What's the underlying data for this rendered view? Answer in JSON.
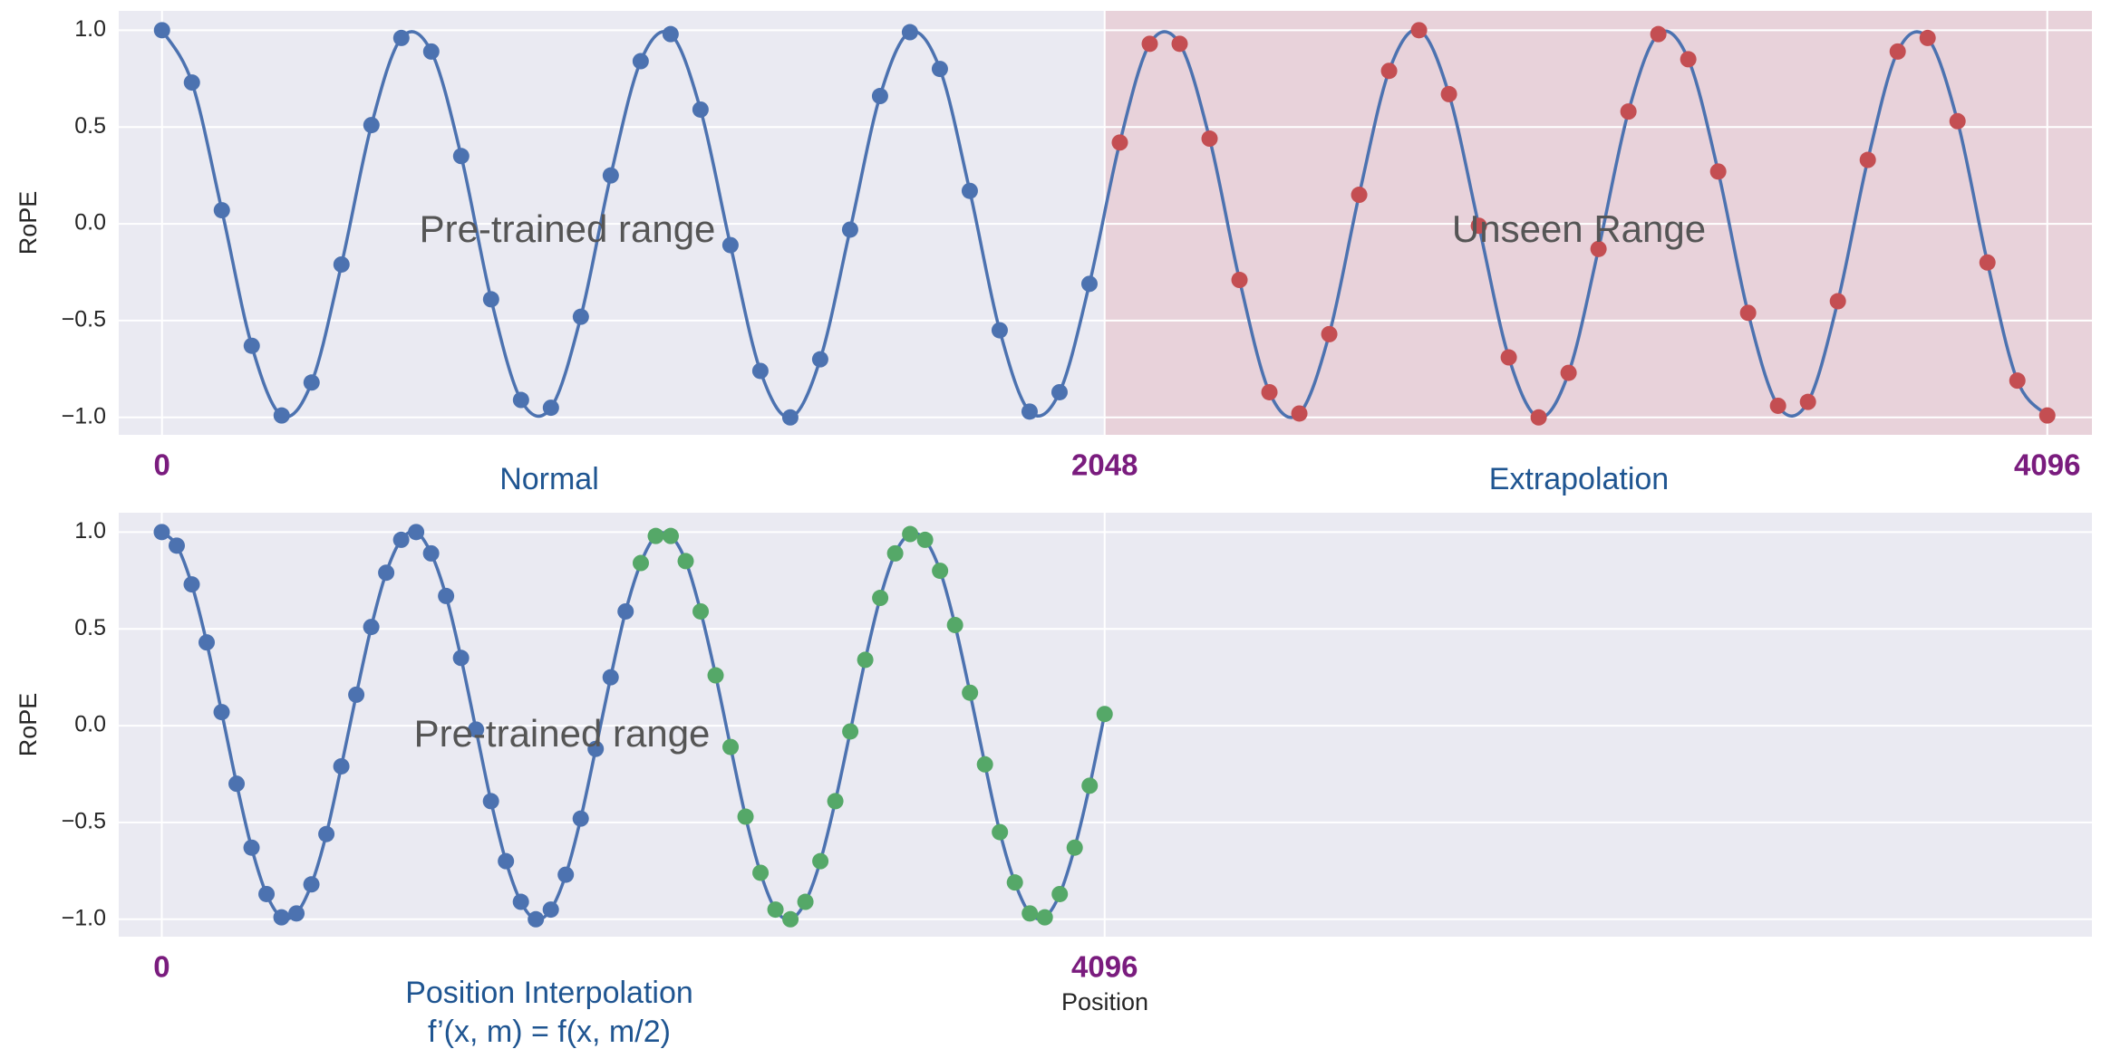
{
  "chart_data": [
    {
      "type": "line",
      "ylabel": "RoPE",
      "xlim": [
        -94,
        4193
      ],
      "ylim": [
        -1.09,
        1.1
      ],
      "xticks": [
        0,
        2048,
        4096
      ],
      "yticks": [
        {
          "value": -1,
          "label": "−1.0"
        },
        {
          "value": -0.5,
          "label": "−0.5"
        },
        {
          "value": 0,
          "label": "0.0"
        },
        {
          "value": 0.5,
          "label": "0.5"
        },
        {
          "value": 1,
          "label": "1.0"
        }
      ],
      "grid": true,
      "line_color": "#4c72b0",
      "shaded_span": [
        2048,
        4193
      ],
      "shade_color": "#e8d2da",
      "annotations": [
        "Pre-trained range",
        "Unseen Range"
      ],
      "regions": [
        "Normal",
        "Extrapolation"
      ],
      "series": [
        {
          "color": "#4c72b0",
          "x": [
            0,
            65,
            130,
            195,
            260,
            325,
            390,
            455,
            520,
            585,
            650,
            715,
            780,
            845,
            910,
            975,
            1040,
            1105,
            1170,
            1235,
            1300,
            1365,
            1430,
            1495,
            1560,
            1625,
            1690,
            1755,
            1820,
            1885,
            1950,
            2015
          ],
          "values": [
            1.0,
            0.73,
            0.07,
            -0.63,
            -0.99,
            -0.82,
            -0.21,
            0.51,
            0.96,
            0.89,
            0.35,
            -0.39,
            -0.91,
            -0.95,
            -0.48,
            0.25,
            0.84,
            0.98,
            0.59,
            -0.11,
            -0.76,
            -1.0,
            -0.7,
            -0.03,
            0.66,
            0.99,
            0.8,
            0.17,
            -0.55,
            -0.97,
            -0.87,
            -0.31
          ]
        },
        {
          "color": "#c44e52",
          "x": [
            2081,
            2146,
            2211,
            2276,
            2341,
            2406,
            2471,
            2536,
            2601,
            2666,
            2731,
            2796,
            2861,
            2926,
            2991,
            3056,
            3121,
            3186,
            3251,
            3316,
            3381,
            3446,
            3511,
            3576,
            3641,
            3706,
            3771,
            3836,
            3901,
            3966,
            4031,
            4096
          ],
          "values": [
            0.42,
            0.93,
            0.93,
            0.44,
            -0.29,
            -0.87,
            -0.98,
            -0.57,
            0.15,
            0.79,
            1.0,
            0.67,
            -0.01,
            -0.69,
            -1.0,
            -0.77,
            -0.13,
            0.58,
            0.98,
            0.85,
            0.27,
            -0.46,
            -0.94,
            -0.92,
            -0.4,
            0.33,
            0.89,
            0.96,
            0.53,
            -0.2,
            -0.81,
            -0.99
          ]
        }
      ]
    },
    {
      "type": "line",
      "ylabel": "RoPE",
      "xlabel": "Position",
      "xlim": [
        -187,
        8385
      ],
      "ylim": [
        -1.09,
        1.1
      ],
      "xticks": [
        0,
        4096
      ],
      "yticks": [
        {
          "value": -1,
          "label": "−1.0"
        },
        {
          "value": -0.5,
          "label": "−0.5"
        },
        {
          "value": 0,
          "label": "0.0"
        },
        {
          "value": 0.5,
          "label": "0.5"
        },
        {
          "value": 1,
          "label": "1.0"
        }
      ],
      "grid": true,
      "line_color": "#4c72b0",
      "annotations": [
        "Pre-trained range"
      ],
      "regions": [
        "Position Interpolation"
      ],
      "formula": "f’(x, m) = f(x, m/2)",
      "series": [
        {
          "color": "#4c72b0",
          "x": [
            0,
            65,
            130,
            195,
            260,
            325,
            390,
            455,
            520,
            585,
            650,
            715,
            780,
            845,
            910,
            975,
            1040,
            1105,
            1170,
            1235,
            1300,
            1365,
            1430,
            1495,
            1560,
            1625,
            1690,
            1755,
            1820,
            1885,
            1950,
            2015
          ],
          "values": [
            1.0,
            0.93,
            0.73,
            0.43,
            0.07,
            -0.3,
            -0.63,
            -0.87,
            -0.99,
            -0.97,
            -0.82,
            -0.56,
            -0.21,
            0.16,
            0.51,
            0.79,
            0.96,
            1.0,
            0.89,
            0.67,
            0.35,
            -0.02,
            -0.39,
            -0.7,
            -0.91,
            -1.0,
            -0.95,
            -0.77,
            -0.48,
            -0.12,
            0.25,
            0.59
          ]
        },
        {
          "color": "#55a868",
          "x": [
            2081,
            2146,
            2211,
            2276,
            2341,
            2406,
            2471,
            2536,
            2601,
            2666,
            2731,
            2796,
            2861,
            2926,
            2991,
            3056,
            3121,
            3186,
            3251,
            3316,
            3381,
            3446,
            3511,
            3576,
            3641,
            3706,
            3771,
            3836,
            3901,
            3966,
            4031,
            4096
          ],
          "values": [
            0.84,
            0.98,
            0.98,
            0.85,
            0.59,
            0.26,
            -0.11,
            -0.47,
            -0.76,
            -0.95,
            -1.0,
            -0.91,
            -0.7,
            -0.39,
            -0.03,
            0.34,
            0.66,
            0.89,
            0.99,
            0.96,
            0.8,
            0.52,
            0.17,
            -0.2,
            -0.55,
            -0.81,
            -0.97,
            -0.99,
            -0.87,
            -0.63,
            -0.31,
            0.06
          ]
        }
      ]
    }
  ]
}
